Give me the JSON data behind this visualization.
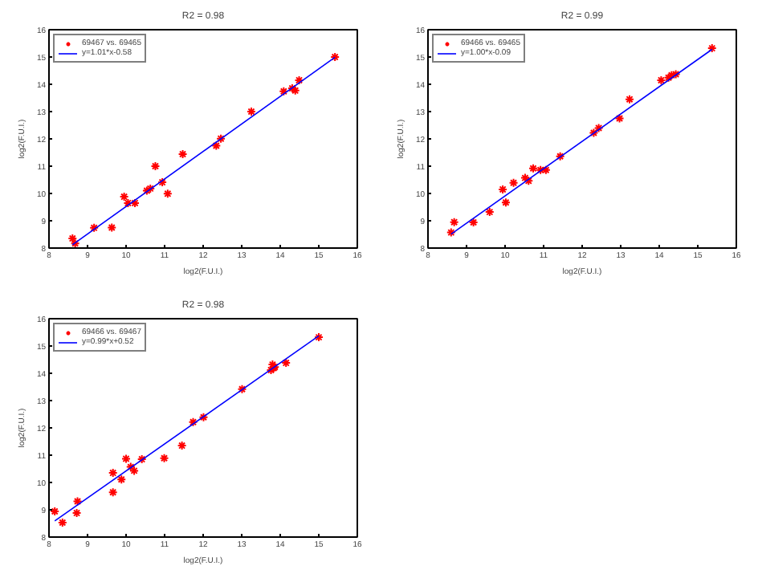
{
  "chart_data": [
    {
      "type": "scatter",
      "title": "R2 = 0.98",
      "xlabel": "log2(F.U.I.)",
      "ylabel": "log2(F.U.I.)",
      "xlim": [
        8,
        16
      ],
      "ylim": [
        8,
        16
      ],
      "xticks": [
        8,
        9,
        10,
        11,
        12,
        13,
        14,
        15,
        16
      ],
      "yticks": [
        8,
        9,
        10,
        11,
        12,
        13,
        14,
        15,
        16
      ],
      "grid": false,
      "legend": "top left",
      "series": [
        {
          "marker": "cross",
          "name": "69467 vs. 69465",
          "color": "#ff0000",
          "x": [
            8.61,
            8.68,
            9.17,
            9.63,
            9.95,
            10.05,
            10.23,
            10.54,
            10.63,
            10.76,
            10.94,
            11.08,
            11.47,
            12.34,
            12.46,
            13.25,
            14.09,
            14.31,
            14.39,
            14.49,
            15.42
          ],
          "values": [
            8.35,
            8.17,
            8.74,
            8.75,
            9.88,
            9.65,
            9.65,
            10.1,
            10.18,
            11.0,
            10.41,
            9.99,
            11.44,
            11.75,
            12.01,
            13.0,
            13.74,
            13.85,
            13.77,
            14.15,
            15.0
          ]
        },
        {
          "type": "line",
          "marker": "none",
          "name": "y=1.01*x-0.58",
          "color": "#0000ff",
          "x": [
            8.61,
            15.42
          ],
          "values": [
            8.12,
            14.99
          ]
        }
      ]
    },
    {
      "type": "scatter",
      "title": "R2 = 0.99",
      "xlabel": "log2(F.U.I.)",
      "ylabel": "log2(F.U.I.)",
      "xlim": [
        8,
        16
      ],
      "ylim": [
        8,
        16
      ],
      "xticks": [
        8,
        9,
        10,
        11,
        12,
        13,
        14,
        15,
        16
      ],
      "yticks": [
        8,
        9,
        10,
        11,
        12,
        13,
        14,
        15,
        16
      ],
      "grid": false,
      "legend": "top left",
      "series": [
        {
          "marker": "cross",
          "name": "69466 vs. 69465",
          "color": "#ff0000",
          "x": [
            8.6,
            8.68,
            9.18,
            9.6,
            9.94,
            10.02,
            10.22,
            10.52,
            10.61,
            10.73,
            10.92,
            11.06,
            11.43,
            12.3,
            12.43,
            12.97,
            13.23,
            14.05,
            14.24,
            14.32,
            14.43,
            15.37
          ],
          "values": [
            8.57,
            8.95,
            8.94,
            9.32,
            10.15,
            9.67,
            10.39,
            10.57,
            10.46,
            10.92,
            10.86,
            10.86,
            11.36,
            12.22,
            12.4,
            12.75,
            13.45,
            14.15,
            14.24,
            14.33,
            14.37,
            15.32
          ]
        },
        {
          "type": "line",
          "marker": "none",
          "name": "y=1.00*x-0.09",
          "color": "#0000ff",
          "x": [
            8.6,
            15.37
          ],
          "values": [
            8.51,
            15.28
          ]
        }
      ]
    },
    {
      "type": "scatter",
      "title": "R2 = 0.98",
      "xlabel": "log2(F.U.I.)",
      "ylabel": "log2(F.U.I.)",
      "xlim": [
        8,
        16
      ],
      "ylim": [
        8,
        16
      ],
      "xticks": [
        8,
        9,
        10,
        11,
        12,
        13,
        14,
        15,
        16
      ],
      "yticks": [
        8,
        9,
        10,
        11,
        12,
        13,
        14,
        15,
        16
      ],
      "grid": false,
      "legend": "top left",
      "series": [
        {
          "marker": "cross",
          "name": "69466 vs. 69467",
          "color": "#ff0000",
          "x": [
            8.15,
            8.35,
            8.74,
            8.72,
            9.66,
            9.66,
            9.88,
            10.0,
            10.12,
            10.21,
            10.41,
            10.99,
            11.45,
            11.74,
            12.01,
            13.01,
            13.76,
            13.8,
            13.83,
            13.86,
            14.15,
            15.0
          ],
          "values": [
            8.94,
            8.53,
            9.31,
            8.88,
            10.35,
            9.64,
            10.11,
            10.87,
            10.57,
            10.43,
            10.85,
            10.89,
            11.35,
            12.21,
            12.39,
            13.42,
            14.12,
            14.32,
            14.19,
            14.23,
            14.38,
            15.32
          ]
        },
        {
          "type": "line",
          "marker": "none",
          "name": "y=0.99*x+0.52",
          "color": "#0000ff",
          "x": [
            8.15,
            15.0
          ],
          "values": [
            8.59,
            15.37
          ]
        }
      ]
    }
  ]
}
